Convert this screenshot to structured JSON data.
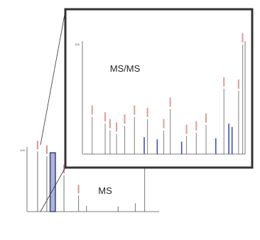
{
  "chart_data": [
    {
      "type": "bar",
      "title": "MS",
      "xlabel": "",
      "ylabel": "",
      "y_max_label": "100",
      "xlim": [
        0,
        10
      ],
      "ylim": [
        0,
        100
      ],
      "grid": false,
      "legend": "none",
      "colors": {
        "peak": "#8a8a8a",
        "peak_label": "#c0392b",
        "selection_fill": "#aeb3d6",
        "selection_stroke": "#2d3580"
      },
      "peaks": [
        {
          "x": 0.8,
          "y": 93
        },
        {
          "x": 1.5,
          "y": 86
        },
        {
          "x": 1.9,
          "y": 6
        },
        {
          "x": 2.8,
          "y": 56
        },
        {
          "x": 3.9,
          "y": 25
        },
        {
          "x": 4.5,
          "y": 9
        },
        {
          "x": 6.9,
          "y": 8
        },
        {
          "x": 8.2,
          "y": 13
        },
        {
          "x": 8.9,
          "y": 80
        }
      ],
      "selected_range": [
        1.75,
        2.15
      ],
      "selection_height": 91
    },
    {
      "type": "bar",
      "title": "MS/MS",
      "xlabel": "",
      "ylabel": "",
      "y_max_label": "100",
      "xlim": [
        0,
        10
      ],
      "ylim": [
        0,
        100
      ],
      "grid": false,
      "legend": "none",
      "colors": {
        "peak_red": "#8c8c8c",
        "peak_blue": "#3f51b5",
        "peak_label": "#c0392b"
      },
      "peaks": [
        {
          "x": 0.6,
          "y": 33,
          "c": "red"
        },
        {
          "x": 1.4,
          "y": 27,
          "c": "red"
        },
        {
          "x": 1.7,
          "y": 21,
          "c": "red"
        },
        {
          "x": 2.1,
          "y": 18,
          "c": "red"
        },
        {
          "x": 2.6,
          "y": 25,
          "c": "red"
        },
        {
          "x": 3.2,
          "y": 33,
          "c": "red"
        },
        {
          "x": 3.8,
          "y": 15,
          "c": "blue"
        },
        {
          "x": 4.0,
          "y": 31,
          "c": "red"
        },
        {
          "x": 4.6,
          "y": 13,
          "c": "blue"
        },
        {
          "x": 5.0,
          "y": 21,
          "c": "red"
        },
        {
          "x": 5.4,
          "y": 40,
          "c": "red"
        },
        {
          "x": 6.1,
          "y": 11,
          "c": "blue"
        },
        {
          "x": 6.4,
          "y": 16,
          "c": "red"
        },
        {
          "x": 7.0,
          "y": 19,
          "c": "red"
        },
        {
          "x": 7.6,
          "y": 26,
          "c": "red"
        },
        {
          "x": 8.2,
          "y": 14,
          "c": "blue"
        },
        {
          "x": 8.7,
          "y": 58,
          "c": "red"
        },
        {
          "x": 9.0,
          "y": 27,
          "c": "blue"
        },
        {
          "x": 9.2,
          "y": 24,
          "c": "blue"
        },
        {
          "x": 9.6,
          "y": 56,
          "c": "red"
        },
        {
          "x": 9.85,
          "y": 97,
          "c": "red"
        }
      ]
    }
  ]
}
